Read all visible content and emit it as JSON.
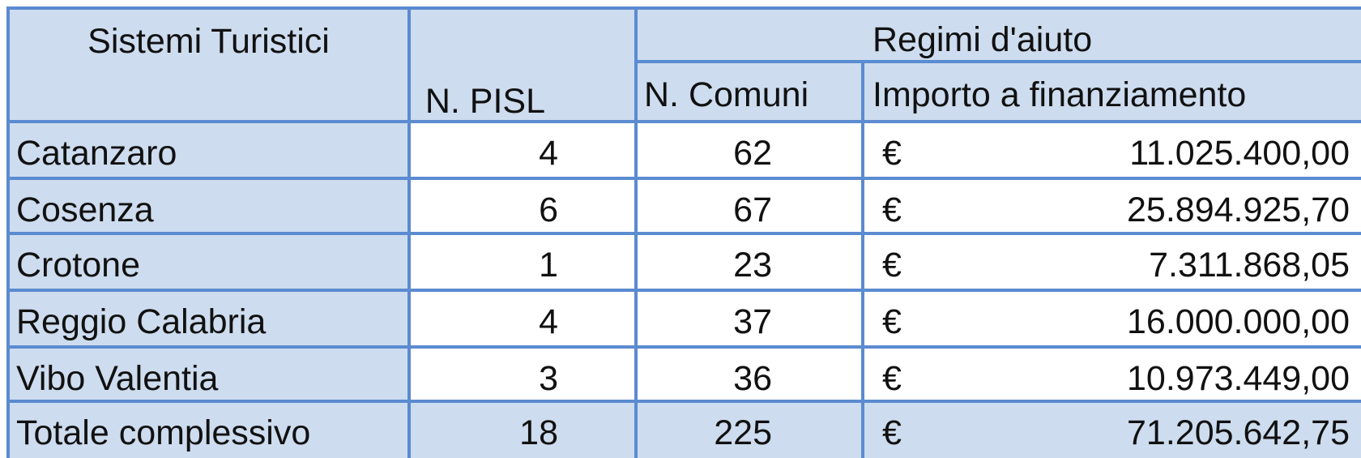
{
  "table": {
    "header": {
      "first": "Sistemi Turistici",
      "pisl": "N. PISL",
      "group": "Regimi d'aiuto",
      "comuni": "N. Comuni",
      "importo": "Importo a finanziamento"
    },
    "rows": [
      [
        "Catanzaro",
        4,
        62,
        "€",
        "11.025.400,00"
      ],
      [
        "Cosenza",
        6,
        67,
        "€",
        "25.894.925,70"
      ],
      [
        "Crotone",
        1,
        23,
        "€",
        "7.311.868,05"
      ],
      [
        "Reggio Calabria",
        4,
        37,
        "€",
        "16.000.000,00"
      ],
      [
        "Vibo Valentia",
        3,
        36,
        "€",
        "10.973.449,00"
      ],
      [
        "Totale complessivo",
        18,
        225,
        "€",
        "71.205.642,75"
      ]
    ]
  }
}
